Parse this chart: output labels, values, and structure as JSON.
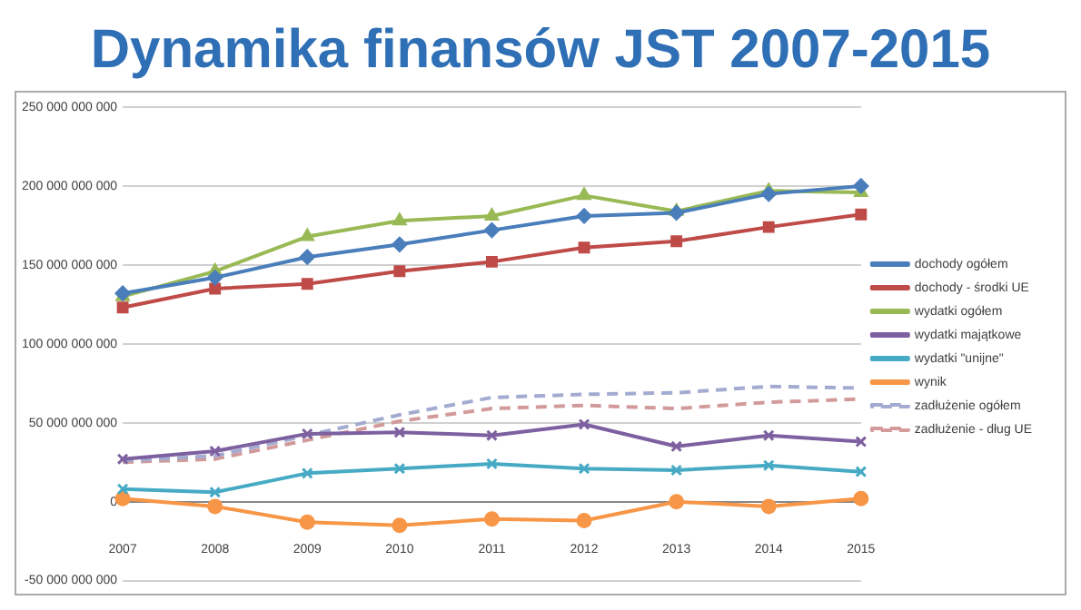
{
  "chart_data": {
    "type": "line",
    "title": "Dynamika finansów JST 2007-2015",
    "categories": [
      "2007",
      "2008",
      "2009",
      "2010",
      "2011",
      "2012",
      "2013",
      "2014",
      "2015"
    ],
    "series": [
      {
        "name": "dochody ogółem",
        "color": "#4a7ebb",
        "marker": "diamond",
        "values": [
          132000000000,
          142000000000,
          155000000000,
          163000000000,
          172000000000,
          181000000000,
          183000000000,
          195000000000,
          200000000000
        ]
      },
      {
        "name": "dochody - środki UE",
        "color": "#be4b48",
        "marker": "square",
        "values": [
          123000000000,
          135000000000,
          138000000000,
          146000000000,
          152000000000,
          161000000000,
          165000000000,
          174000000000,
          182000000000
        ]
      },
      {
        "name": "wydatki ogółem",
        "color": "#98b954",
        "marker": "triangle",
        "values": [
          130000000000,
          146000000000,
          168000000000,
          178000000000,
          181000000000,
          194000000000,
          184000000000,
          197000000000,
          196000000000
        ]
      },
      {
        "name": "wydatki majątkowe",
        "color": "#7d60a0",
        "marker": "cross",
        "values": [
          27000000000,
          32000000000,
          43000000000,
          44000000000,
          42000000000,
          49000000000,
          35000000000,
          42000000000,
          38000000000
        ]
      },
      {
        "name": "wydatki \"unijne\"",
        "color": "#46aac5",
        "marker": "cross",
        "values": [
          8000000000,
          6000000000,
          18000000000,
          21000000000,
          24000000000,
          21000000000,
          20000000000,
          23000000000,
          19000000000
        ]
      },
      {
        "name": "wynik",
        "color": "#f79646",
        "marker": "circle",
        "values": [
          2000000000,
          -3000000000,
          -13000000000,
          -15000000000,
          -11000000000,
          -12000000000,
          0,
          -3000000000,
          2000000000
        ]
      },
      {
        "name": "zadłużenie ogółem",
        "color": "#a3abd0",
        "marker": "none",
        "line_style": "dashed",
        "values": [
          26000000000,
          29000000000,
          42000000000,
          55000000000,
          66000000000,
          68000000000,
          69000000000,
          73000000000,
          72000000000
        ]
      },
      {
        "name": "zadłużenie - dług UE",
        "color": "#d29a9a",
        "marker": "none",
        "line_style": "dashed",
        "values": [
          25000000000,
          27000000000,
          39000000000,
          51000000000,
          59000000000,
          61000000000,
          59000000000,
          63000000000,
          65000000000
        ]
      }
    ],
    "ylim": [
      -50000000000,
      250000000000
    ],
    "yticks": [
      {
        "value": -50000000000,
        "label": "-50 000 000 000"
      },
      0,
      {
        "value": 50000000000,
        "label": "50 000 000 000"
      },
      {
        "value": 100000000000,
        "label": "100 000 000 000"
      },
      {
        "value": 150000000000,
        "label": "150 000 000 000"
      },
      {
        "value": 200000000000,
        "label": "200 000 000 000"
      },
      {
        "value": 250000000000,
        "label": "250 000 000 000"
      }
    ],
    "grid": "y",
    "legend": "right"
  }
}
